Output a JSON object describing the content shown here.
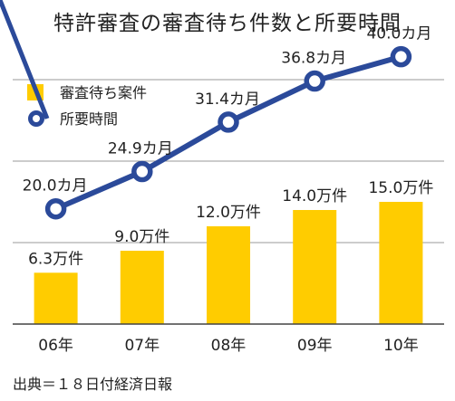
{
  "chart_data": {
    "type": "bar",
    "title": "特許審査の審査待ち件数と所要時間",
    "categories": [
      "06年",
      "07年",
      "08年",
      "09年",
      "10年"
    ],
    "series": [
      {
        "name": "審査待ち案件",
        "type": "bar",
        "values": [
          6.3,
          9.0,
          12.0,
          14.0,
          15.0
        ],
        "labels": [
          "6.3万件",
          "9.0万件",
          "12.0万件",
          "14.0万件",
          "15.0万件"
        ],
        "color": "#FFCC00"
      },
      {
        "name": "所要時間",
        "type": "line",
        "values": [
          20.0,
          24.9,
          31.4,
          36.8,
          40.0
        ],
        "labels": [
          "20.0カ月",
          "24.9カ月",
          "31.4カ月",
          "36.8カ月",
          "40.0カ月"
        ],
        "color": "#2B4A9A"
      }
    ],
    "legend": "top-left",
    "grid": true
  },
  "source": "出典＝１８日付経済日報"
}
